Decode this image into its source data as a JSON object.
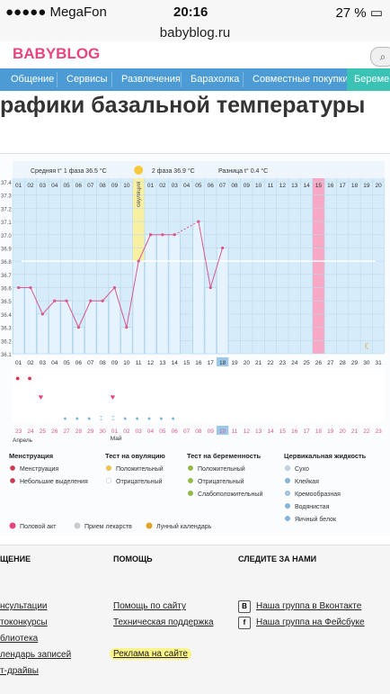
{
  "status_bar": {
    "carrier": "●●●●● MegaFon",
    "time": "20:16",
    "battery": "27 %"
  },
  "url_bar": {
    "url": "babyblog.ru"
  },
  "logo": {
    "part1": "BABY",
    "part2": "BLOG"
  },
  "nav": {
    "items": [
      "Общение",
      "Сервисы",
      "Развлечения",
      "Барахолка",
      "Совместные покупки",
      "Беремен"
    ]
  },
  "page_title": "рафики базальной температуры",
  "colors": {
    "nav_bg": "#4c9bd4",
    "nav_last": "#3ac3b5",
    "chart_bar": "#c7e4f7",
    "ovulation": "#f7f0a3",
    "pink_day": "#f6a8c4",
    "line": "#d9588c"
  },
  "chart_data": {
    "type": "bar",
    "y_ticks": [
      "37.4",
      "37.3",
      "37.2",
      "37.1",
      "37.0",
      "36.9",
      "36.8",
      "36.7",
      "36.6",
      "36.5",
      "36.4",
      "36.3",
      "36.2",
      "36.1"
    ],
    "ylim": [
      36.1,
      37.4
    ],
    "phase1_label": "Средняя t° 1 фаза 36.5 °C",
    "phase2_label": "2 фаза 36.9 °C",
    "diff_label": "Разница t° 0.4 °C",
    "ovulation_label": "овуляция",
    "cycle_days_top": [
      "01",
      "02",
      "03",
      "04",
      "05",
      "06",
      "07",
      "08",
      "09",
      "10",
      "11",
      "01",
      "02",
      "03",
      "04",
      "05",
      "06",
      "07",
      "08",
      "09",
      "10",
      "11",
      "12",
      "13",
      "14",
      "15",
      "16",
      "17",
      "18",
      "19",
      "20"
    ],
    "cycle_days_bottom": [
      "01",
      "02",
      "03",
      "04",
      "05",
      "06",
      "07",
      "08",
      "09",
      "10",
      "11",
      "12",
      "13",
      "14",
      "15",
      "16",
      "17",
      "18",
      "19",
      "20",
      "21",
      "22",
      "23",
      "24",
      "25",
      "26",
      "27",
      "28",
      "29",
      "30",
      "31"
    ],
    "dates": [
      "23",
      "24",
      "25",
      "26",
      "27",
      "28",
      "29",
      "30",
      "01",
      "02",
      "03",
      "04",
      "05",
      "06",
      "07",
      "08",
      "09",
      "10",
      "11",
      "12",
      "13",
      "14",
      "15",
      "16",
      "17",
      "18",
      "19",
      "20",
      "21",
      "22",
      "23"
    ],
    "month_labels": [
      "Апрель",
      "Май"
    ],
    "values": [
      36.6,
      36.6,
      36.4,
      36.5,
      36.5,
      36.3,
      36.5,
      36.5,
      36.6,
      36.3,
      36.8,
      37.0,
      37.0,
      37.0,
      null,
      37.1,
      36.6,
      36.9,
      null,
      null,
      null,
      null,
      null,
      null,
      null,
      null,
      null,
      null,
      null,
      null,
      null
    ],
    "coverline": 36.8,
    "highlight_day": "18",
    "pink_day": "26"
  },
  "legend": {
    "menstruation": {
      "title": "Менструация",
      "items": [
        "Менструация",
        "Небольшие выделения"
      ]
    },
    "ovulation_test": {
      "title": "Тест на овуляцию",
      "items": [
        "Положительный",
        "Отрицательный"
      ]
    },
    "pregnancy_test": {
      "title": "Тест на беременность",
      "items": [
        "Положительный",
        "Отрицательный",
        "Слабоположительный"
      ]
    },
    "cervical": {
      "title": "Цервикальная жидкость",
      "items": [
        "Сухо",
        "Клейкая",
        "Кремообразная",
        "Водянистая",
        "Яичный белок"
      ]
    },
    "bottom": [
      "Половой акт",
      "Прием лекарств",
      "Лунный календарь"
    ]
  },
  "footer": {
    "col1": {
      "head": "ЩЕНИЕ",
      "links": [
        "нсультации",
        "токонкурсы",
        "блиотека",
        "лендарь записей",
        "т-драйвы"
      ]
    },
    "col2": {
      "head": "ПОМОЩЬ",
      "links": [
        "Помощь по сайту",
        "Техническая поддержка",
        "Реклама на сайте"
      ]
    },
    "col3": {
      "head": "СЛЕДИТЕ ЗА НАМИ",
      "links": [
        "Наша группа в Вконтакте",
        "Наша группа на Фейсбуке"
      ]
    }
  }
}
